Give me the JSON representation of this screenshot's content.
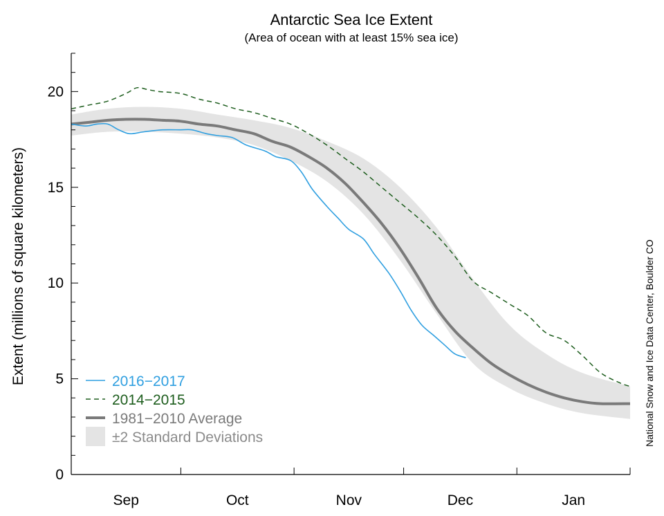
{
  "chart_data": {
    "type": "line",
    "title": "Antarctic Sea Ice Extent",
    "subtitle": "(Area of ocean with at least 15% sea ice)",
    "ylabel": "Extent (millions of square kilometers)",
    "xlabel": "",
    "credit": "National Snow and Ice Data Center, Boulder CO",
    "ylim": [
      0,
      22
    ],
    "yticks": [
      0,
      5,
      10,
      15,
      20
    ],
    "xlim": [
      0,
      153
    ],
    "month_labels": [
      {
        "label": "Sep",
        "center": 15
      },
      {
        "label": "Oct",
        "center": 45.5
      },
      {
        "label": "Nov",
        "center": 76
      },
      {
        "label": "Dec",
        "center": 106.5
      },
      {
        "label": "Jan",
        "center": 137.5
      }
    ],
    "month_boundaries": [
      0,
      30,
      61,
      91,
      122,
      153
    ],
    "band": {
      "name": "±2 Standard Deviations",
      "color": "#e4e4e4",
      "x": [
        0,
        10,
        20,
        30,
        40,
        50,
        60,
        70,
        80,
        90,
        100,
        110,
        120,
        130,
        140,
        153
      ],
      "upper": [
        18.8,
        19.1,
        19.2,
        19.1,
        18.8,
        18.5,
        18.1,
        17.4,
        16.5,
        15.0,
        12.9,
        10.2,
        7.8,
        6.3,
        5.3,
        4.6
      ],
      "lower": [
        17.7,
        17.9,
        17.9,
        17.8,
        17.6,
        17.2,
        16.4,
        15.3,
        13.6,
        11.2,
        8.4,
        5.8,
        4.5,
        3.7,
        3.2,
        2.9
      ]
    },
    "series": [
      {
        "name": "1981−2010 Average",
        "color": "#7a7a7a",
        "style": "solid",
        "x": [
          0,
          5,
          10,
          15,
          20,
          25,
          30,
          35,
          40,
          45,
          50,
          55,
          60,
          65,
          70,
          75,
          80,
          85,
          90,
          95,
          100,
          105,
          110,
          115,
          120,
          125,
          130,
          135,
          140,
          145,
          153
        ],
        "values": [
          18.3,
          18.4,
          18.5,
          18.55,
          18.55,
          18.5,
          18.45,
          18.3,
          18.2,
          18.0,
          17.8,
          17.4,
          17.1,
          16.6,
          16.0,
          15.2,
          14.2,
          13.1,
          11.8,
          10.3,
          8.7,
          7.5,
          6.6,
          5.8,
          5.2,
          4.7,
          4.3,
          4.0,
          3.8,
          3.7,
          3.7
        ]
      },
      {
        "name": "2016−2017",
        "color": "#2f9fe0",
        "style": "solid",
        "x": [
          0,
          4,
          7,
          10,
          13,
          16,
          20,
          25,
          30,
          33,
          37,
          40,
          44,
          48,
          53,
          56,
          60,
          63,
          66,
          70,
          73,
          76,
          80,
          83,
          87,
          90,
          93,
          96,
          99,
          102,
          105,
          108
        ],
        "values": [
          18.3,
          18.2,
          18.3,
          18.3,
          18.0,
          17.8,
          17.9,
          18.0,
          18.0,
          18.0,
          17.8,
          17.7,
          17.6,
          17.2,
          16.9,
          16.6,
          16.4,
          15.8,
          14.9,
          14.0,
          13.4,
          12.8,
          12.3,
          11.5,
          10.5,
          9.6,
          8.6,
          7.8,
          7.3,
          6.8,
          6.3,
          6.1
        ]
      },
      {
        "name": "2014−2015",
        "color": "#1d5d1d",
        "style": "dashed",
        "x": [
          0,
          5,
          10,
          15,
          18,
          21,
          24,
          30,
          35,
          40,
          45,
          50,
          55,
          60,
          65,
          70,
          75,
          80,
          85,
          90,
          95,
          100,
          105,
          110,
          115,
          120,
          125,
          130,
          135,
          140,
          145,
          150,
          153
        ],
        "values": [
          19.1,
          19.3,
          19.5,
          19.9,
          20.2,
          20.1,
          20.0,
          19.9,
          19.6,
          19.4,
          19.1,
          18.9,
          18.6,
          18.3,
          17.8,
          17.2,
          16.5,
          15.8,
          15.0,
          14.2,
          13.4,
          12.5,
          11.4,
          10.1,
          9.5,
          8.9,
          8.3,
          7.4,
          7.0,
          6.2,
          5.3,
          4.8,
          4.6
        ]
      }
    ],
    "legend": [
      {
        "key": "2016-2017",
        "label": "2016−2017",
        "color": "#2f9fe0",
        "kind": "solid"
      },
      {
        "key": "2014-2015",
        "label": "2014−2015",
        "color": "#1d5d1d",
        "kind": "dashed"
      },
      {
        "key": "average",
        "label": "1981−2010 Average",
        "color": "#7a7a7a",
        "kind": "thick"
      },
      {
        "key": "std",
        "label": "±2 Standard Deviations",
        "color": "#8a8a8a",
        "kind": "band"
      }
    ]
  }
}
